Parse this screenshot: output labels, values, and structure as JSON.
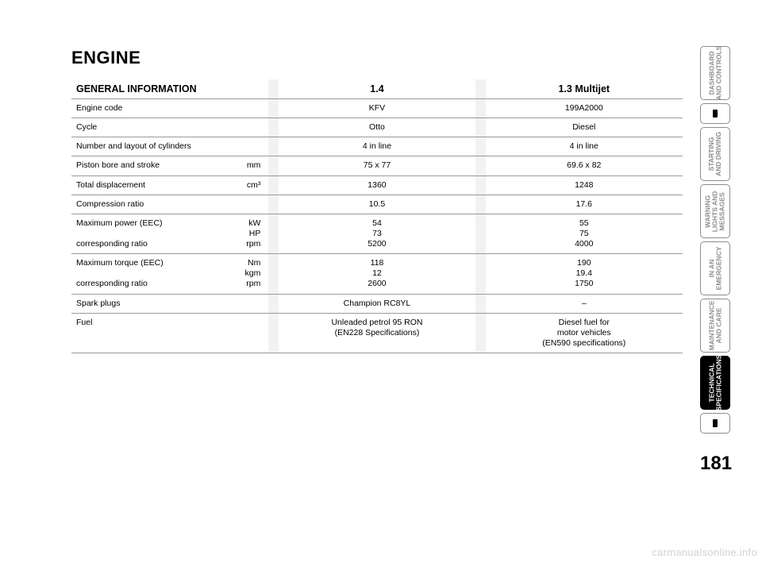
{
  "page": {
    "title": "ENGINE",
    "number": "181",
    "watermark": "carmanualsonline.info"
  },
  "table": {
    "header": {
      "section": "GENERAL INFORMATION",
      "col1": "1.4",
      "col2": "1.3 Multijet"
    },
    "rows": [
      {
        "label": "Engine code",
        "unit": "",
        "v1": "KFV",
        "v2": "199A2000"
      },
      {
        "label": "Cycle",
        "unit": "",
        "v1": "Otto",
        "v2": "Diesel"
      },
      {
        "label": "Number and layout of cylinders",
        "unit": "",
        "v1": "4 in line",
        "v2": "4 in line"
      },
      {
        "label": "Piston bore and stroke",
        "unit": "mm",
        "v1": "75 x 77",
        "v2": "69.6 x 82"
      },
      {
        "label": "Total displacement",
        "unit": "cm³",
        "v1": "1360",
        "v2": "1248"
      },
      {
        "label": "Compression ratio",
        "unit": "",
        "v1": "10.5",
        "v2": "17.6"
      },
      {
        "label": "Maximum power (EEC)\n\ncorresponding ratio",
        "unit": "kW\nHP\nrpm",
        "v1": "54\n73\n5200",
        "v2": "55\n75\n4000"
      },
      {
        "label": "Maximum torque (EEC)\n\ncorresponding ratio",
        "unit": "Nm\nkgm\nrpm",
        "v1": "118\n12\n2600",
        "v2": "190\n19.4\n1750"
      },
      {
        "label": "Spark plugs",
        "unit": "",
        "v1": "Champion RC8YL",
        "v2": "–"
      },
      {
        "label": "Fuel",
        "unit": "",
        "v1": "Unleaded petrol 95 RON\n(EN228 Specifications)",
        "v2": "Diesel fuel for\nmotor vehicles\n(EN590 specifications)"
      }
    ]
  },
  "tabs": [
    {
      "label": "DASHBOARD\nAND CONTROLS",
      "active": false,
      "short": false
    },
    {
      "label": "",
      "active": false,
      "short": true
    },
    {
      "label": "STARTING\nAND DRIVING",
      "active": false,
      "short": false
    },
    {
      "label": "WARNING\nLIGHTS AND\nMESSAGES",
      "active": false,
      "short": false
    },
    {
      "label": "IN AN\nEMERGENCY",
      "active": false,
      "short": false
    },
    {
      "label": "MAINTENANCE\nAND CARE",
      "active": false,
      "short": false
    },
    {
      "label": "TECHNICAL\nSPECIFICATIONS",
      "active": true,
      "short": false
    },
    {
      "label": "",
      "active": false,
      "short": true
    }
  ]
}
